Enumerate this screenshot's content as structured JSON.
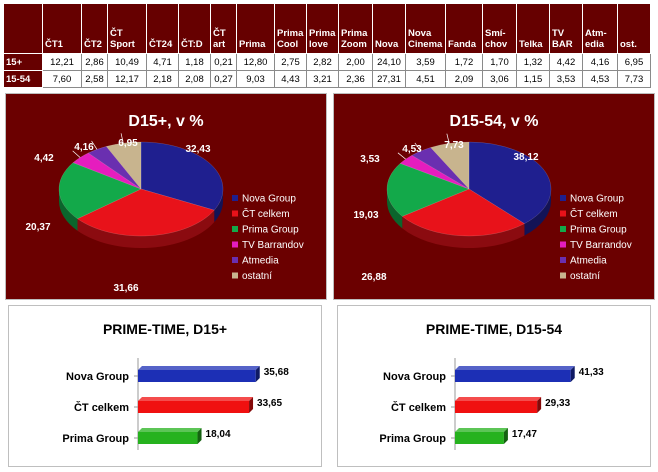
{
  "table": {
    "columns": [
      [
        "ČT1"
      ],
      [
        "ČT2"
      ],
      [
        "ČT",
        "Sport"
      ],
      [
        "ČT24"
      ],
      [
        "ČT:D"
      ],
      [
        "ČT",
        "art"
      ],
      [
        "Prima"
      ],
      [
        "Prima",
        "Cool"
      ],
      [
        "Prima",
        "love"
      ],
      [
        "Prima",
        "Zoom"
      ],
      [
        "Nova"
      ],
      [
        "Nova",
        "Cinema"
      ],
      [
        "Fanda"
      ],
      [
        "Smí-",
        "chov"
      ],
      [
        "Telka"
      ],
      [
        "TV",
        "BAR"
      ],
      [
        "Atm-",
        "edia"
      ],
      [
        "ost."
      ]
    ],
    "rows": [
      {
        "label": "15+",
        "values": [
          "12,21",
          "2,86",
          "10,49",
          "4,71",
          "1,18",
          "0,21",
          "12,80",
          "2,75",
          "2,82",
          "2,00",
          "24,10",
          "3,59",
          "1,72",
          "1,70",
          "1,32",
          "4,42",
          "4,16",
          "6,95"
        ]
      },
      {
        "label": "15-54",
        "values": [
          "7,60",
          "2,58",
          "12,17",
          "2,18",
          "2,08",
          "0,27",
          "9,03",
          "4,43",
          "3,21",
          "2,36",
          "27,31",
          "4,51",
          "2,09",
          "3,06",
          "1,15",
          "3,53",
          "4,53",
          "7,73"
        ]
      }
    ]
  },
  "colors": {
    "nova": "#1f1f8f",
    "ct": "#e8121a",
    "prima": "#13a94a",
    "barrandov": "#e51dbe",
    "atmedia": "#6a2fb0",
    "ostatni": "#c8b48e",
    "panel_bg": "#6b0000",
    "bar_blue": "#1c2fb5",
    "bar_red": "#f01010",
    "bar_green": "#26b21e"
  },
  "chart_data": [
    {
      "type": "pie",
      "title": "D15+, v %",
      "categories": [
        "Nova Group",
        "ČT celkem",
        "Prima Group",
        "TV Barrandov",
        "Atmedia",
        "ostatní"
      ],
      "values": [
        32.43,
        31.66,
        20.37,
        4.42,
        4.16,
        6.95
      ],
      "labels": [
        "32,43",
        "31,66",
        "20,37",
        "4,42",
        "4,16",
        "6,95"
      ],
      "legend": "right"
    },
    {
      "type": "pie",
      "title": "D15-54, v %",
      "categories": [
        "Nova Group",
        "ČT celkem",
        "Prima Group",
        "TV Barrandov",
        "Atmedia",
        "ostatní"
      ],
      "values": [
        38.12,
        26.88,
        19.03,
        3.53,
        4.53,
        7.73
      ],
      "labels": [
        "38,12",
        "26,88",
        "19,03",
        "3,53",
        "4,53",
        "7,73"
      ],
      "legend": "right"
    },
    {
      "type": "bar",
      "orientation": "horizontal",
      "title": "PRIME-TIME, D15+",
      "categories": [
        "Nova Group",
        "ČT celkem",
        "Prima Group"
      ],
      "values": [
        35.68,
        33.65,
        18.04
      ],
      "labels": [
        "35,68",
        "33,65",
        "18,04"
      ],
      "xlim": [
        0,
        40
      ]
    },
    {
      "type": "bar",
      "orientation": "horizontal",
      "title": "PRIME-TIME, D15-54",
      "categories": [
        "Nova Group",
        "ČT celkem",
        "Prima Group"
      ],
      "values": [
        41.33,
        29.33,
        17.47
      ],
      "labels": [
        "41,33",
        "29,33",
        "17,47"
      ],
      "xlim": [
        0,
        45
      ]
    }
  ]
}
